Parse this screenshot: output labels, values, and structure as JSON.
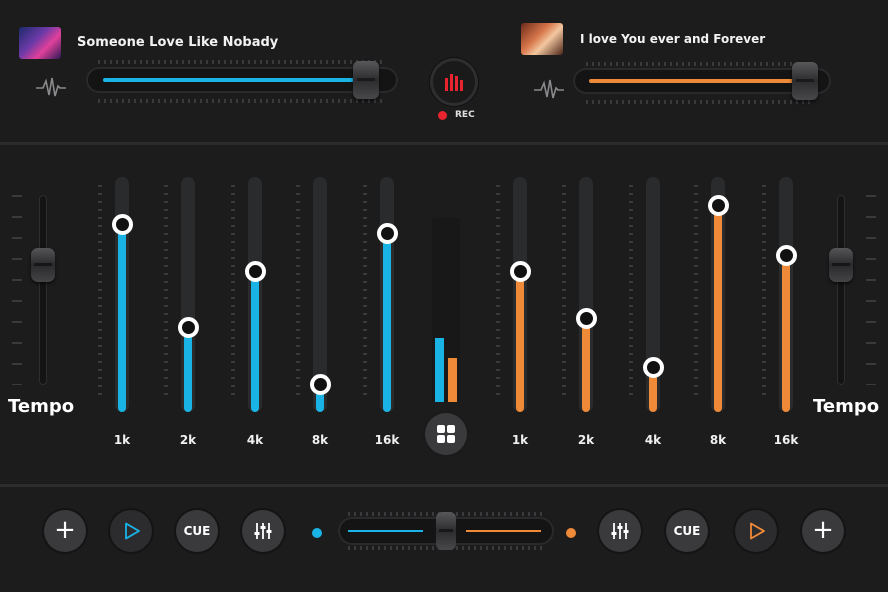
{
  "colors": {
    "left_accent": "#1ab3e6",
    "right_accent": "#ef8a38",
    "rec": "#e8242f",
    "background": "#1c1c1d"
  },
  "left_deck": {
    "title": "Someone Love Like Nobady",
    "thumbnail_icon": "album-art-thumbnail",
    "waveform_icon": "waveform-icon",
    "position": 0.95
  },
  "right_deck": {
    "title": "I love You ever and Forever",
    "thumbnail_icon": "album-art-thumbnail",
    "waveform_icon": "waveform-icon",
    "position": 0.95
  },
  "rec": {
    "label": "REC",
    "icon": "record-bars-icon"
  },
  "tempo": {
    "left_label": "Tempo",
    "right_label": "Tempo",
    "left_value": 0.63,
    "right_value": 0.63
  },
  "left_eq": {
    "bands": [
      {
        "label": "1k",
        "level": 0.8
      },
      {
        "label": "2k",
        "level": 0.36
      },
      {
        "label": "4k",
        "level": 0.6
      },
      {
        "label": "8k",
        "level": 0.12
      },
      {
        "label": "16k",
        "level": 0.76
      }
    ]
  },
  "right_eq": {
    "bands": [
      {
        "label": "1k",
        "level": 0.6
      },
      {
        "label": "2k",
        "level": 0.4
      },
      {
        "label": "4k",
        "level": 0.19
      },
      {
        "label": "8k",
        "level": 0.88
      },
      {
        "label": "16k",
        "level": 0.67
      }
    ]
  },
  "vu_meter": {
    "left_level": 0.35,
    "right_level": 0.24
  },
  "center_button": {
    "icon": "grid-icon"
  },
  "bottom_bar": {
    "left": {
      "add_label": "+",
      "cue_label": "CUE",
      "play_icon": "play-icon",
      "mixer_icon": "mixer-sliders-icon"
    },
    "right": {
      "add_label": "+",
      "cue_label": "CUE",
      "play_icon": "play-icon",
      "mixer_icon": "mixer-sliders-icon"
    },
    "crossfader_value": 0.5
  }
}
